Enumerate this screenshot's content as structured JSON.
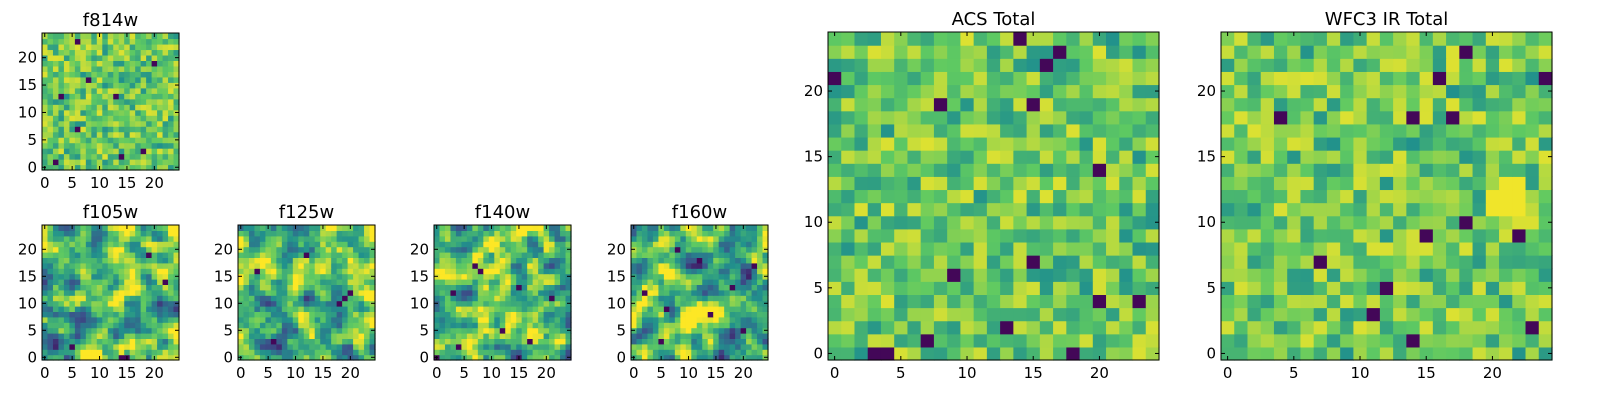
{
  "chart_data": [
    {
      "type": "heatmap",
      "title": "f814w",
      "colormap": "viridis",
      "grid_size": [
        25,
        25
      ],
      "x_ticks": [
        0,
        5,
        10,
        15,
        20
      ],
      "y_ticks": [
        0,
        5,
        10,
        15,
        20
      ],
      "xlim": [
        0,
        24
      ],
      "ylim": [
        0,
        24
      ],
      "value_range": [
        0,
        1
      ],
      "texture": "fine",
      "seed": 11,
      "dark_pixels": [
        [
          6,
          23
        ],
        [
          8,
          16
        ],
        [
          3,
          13
        ],
        [
          13,
          13
        ],
        [
          18,
          3
        ],
        [
          14,
          2
        ],
        [
          2,
          1
        ],
        [
          6,
          7
        ],
        [
          20,
          19
        ]
      ]
    },
    {
      "type": "heatmap",
      "title": "f105w",
      "colormap": "viridis",
      "grid_size": [
        25,
        25
      ],
      "x_ticks": [
        0,
        5,
        10,
        15,
        20
      ],
      "y_ticks": [
        0,
        5,
        10,
        15,
        20
      ],
      "xlim": [
        0,
        24
      ],
      "ylim": [
        0,
        24
      ],
      "value_range": [
        0,
        1
      ],
      "texture": "smooth",
      "seed": 22,
      "dark_pixels": [
        [
          19,
          19
        ],
        [
          14,
          0
        ],
        [
          15,
          0
        ],
        [
          5,
          2
        ],
        [
          22,
          14
        ]
      ]
    },
    {
      "type": "heatmap",
      "title": "f125w",
      "colormap": "viridis",
      "grid_size": [
        25,
        25
      ],
      "x_ticks": [
        0,
        5,
        10,
        15,
        20
      ],
      "y_ticks": [
        0,
        5,
        10,
        15,
        20
      ],
      "xlim": [
        0,
        24
      ],
      "ylim": [
        0,
        24
      ],
      "value_range": [
        0,
        1
      ],
      "texture": "smooth",
      "seed": 33,
      "dark_pixels": [
        [
          19,
          11
        ],
        [
          20,
          12
        ],
        [
          18,
          10
        ],
        [
          6,
          3
        ],
        [
          12,
          19
        ],
        [
          3,
          16
        ]
      ]
    },
    {
      "type": "heatmap",
      "title": "f140w",
      "colormap": "viridis",
      "grid_size": [
        25,
        25
      ],
      "x_ticks": [
        0,
        5,
        10,
        15,
        20
      ],
      "y_ticks": [
        0,
        5,
        10,
        15,
        20
      ],
      "xlim": [
        0,
        24
      ],
      "ylim": [
        0,
        24
      ],
      "value_range": [
        0,
        1
      ],
      "texture": "smooth",
      "seed": 44,
      "dark_pixels": [
        [
          7,
          17
        ],
        [
          8,
          16
        ],
        [
          15,
          13
        ],
        [
          3,
          12
        ],
        [
          21,
          11
        ],
        [
          4,
          2
        ],
        [
          12,
          5
        ],
        [
          0,
          0
        ],
        [
          17,
          3
        ]
      ]
    },
    {
      "type": "heatmap",
      "title": "f160w",
      "colormap": "viridis",
      "grid_size": [
        25,
        25
      ],
      "x_ticks": [
        0,
        5,
        10,
        15,
        20
      ],
      "y_ticks": [
        0,
        5,
        10,
        15,
        20
      ],
      "xlim": [
        0,
        24
      ],
      "ylim": [
        0,
        24
      ],
      "value_range": [
        0,
        1
      ],
      "texture": "smooth",
      "seed": 55,
      "dark_pixels": [
        [
          8,
          20
        ],
        [
          12,
          18
        ],
        [
          22,
          17
        ],
        [
          6,
          9
        ],
        [
          14,
          8
        ],
        [
          18,
          13
        ],
        [
          5,
          3
        ],
        [
          2,
          12
        ],
        [
          20,
          5
        ]
      ]
    },
    {
      "type": "heatmap",
      "title": "ACS Total",
      "colormap": "viridis",
      "grid_size": [
        25,
        25
      ],
      "x_ticks": [
        0,
        5,
        10,
        15,
        20
      ],
      "y_ticks": [
        0,
        5,
        10,
        15,
        20
      ],
      "xlim": [
        0,
        24
      ],
      "ylim": [
        0,
        24
      ],
      "value_range": [
        0,
        1
      ],
      "texture": "blocky",
      "seed": 66,
      "dark_pixels": [
        [
          0,
          21
        ],
        [
          14,
          24
        ],
        [
          16,
          22
        ],
        [
          17,
          23
        ],
        [
          8,
          19
        ],
        [
          15,
          19
        ],
        [
          20,
          14
        ],
        [
          20,
          4
        ],
        [
          9,
          6
        ],
        [
          15,
          7
        ],
        [
          23,
          4
        ],
        [
          13,
          2
        ],
        [
          7,
          1
        ],
        [
          4,
          0
        ],
        [
          3,
          0
        ],
        [
          18,
          0
        ]
      ]
    },
    {
      "type": "heatmap",
      "title": "WFC3 IR Total",
      "colormap": "viridis",
      "grid_size": [
        25,
        25
      ],
      "x_ticks": [
        0,
        5,
        10,
        15,
        20
      ],
      "y_ticks": [
        0,
        5,
        10,
        15,
        20
      ],
      "xlim": [
        0,
        24
      ],
      "ylim": [
        0,
        24
      ],
      "value_range": [
        0,
        1
      ],
      "texture": "blocky",
      "seed": 77,
      "dark_pixels": [
        [
          18,
          23
        ],
        [
          16,
          21
        ],
        [
          4,
          18
        ],
        [
          14,
          18
        ],
        [
          24,
          21
        ],
        [
          17,
          18
        ],
        [
          18,
          10
        ],
        [
          15,
          9
        ],
        [
          7,
          7
        ],
        [
          12,
          5
        ],
        [
          11,
          3
        ],
        [
          14,
          1
        ],
        [
          23,
          2
        ],
        [
          22,
          9
        ]
      ],
      "bright_patch": [
        [
          20,
          11
        ],
        [
          21,
          11
        ],
        [
          22,
          11
        ],
        [
          20,
          12
        ],
        [
          21,
          12
        ],
        [
          22,
          12
        ],
        [
          21,
          13
        ],
        [
          22,
          13
        ]
      ]
    }
  ]
}
